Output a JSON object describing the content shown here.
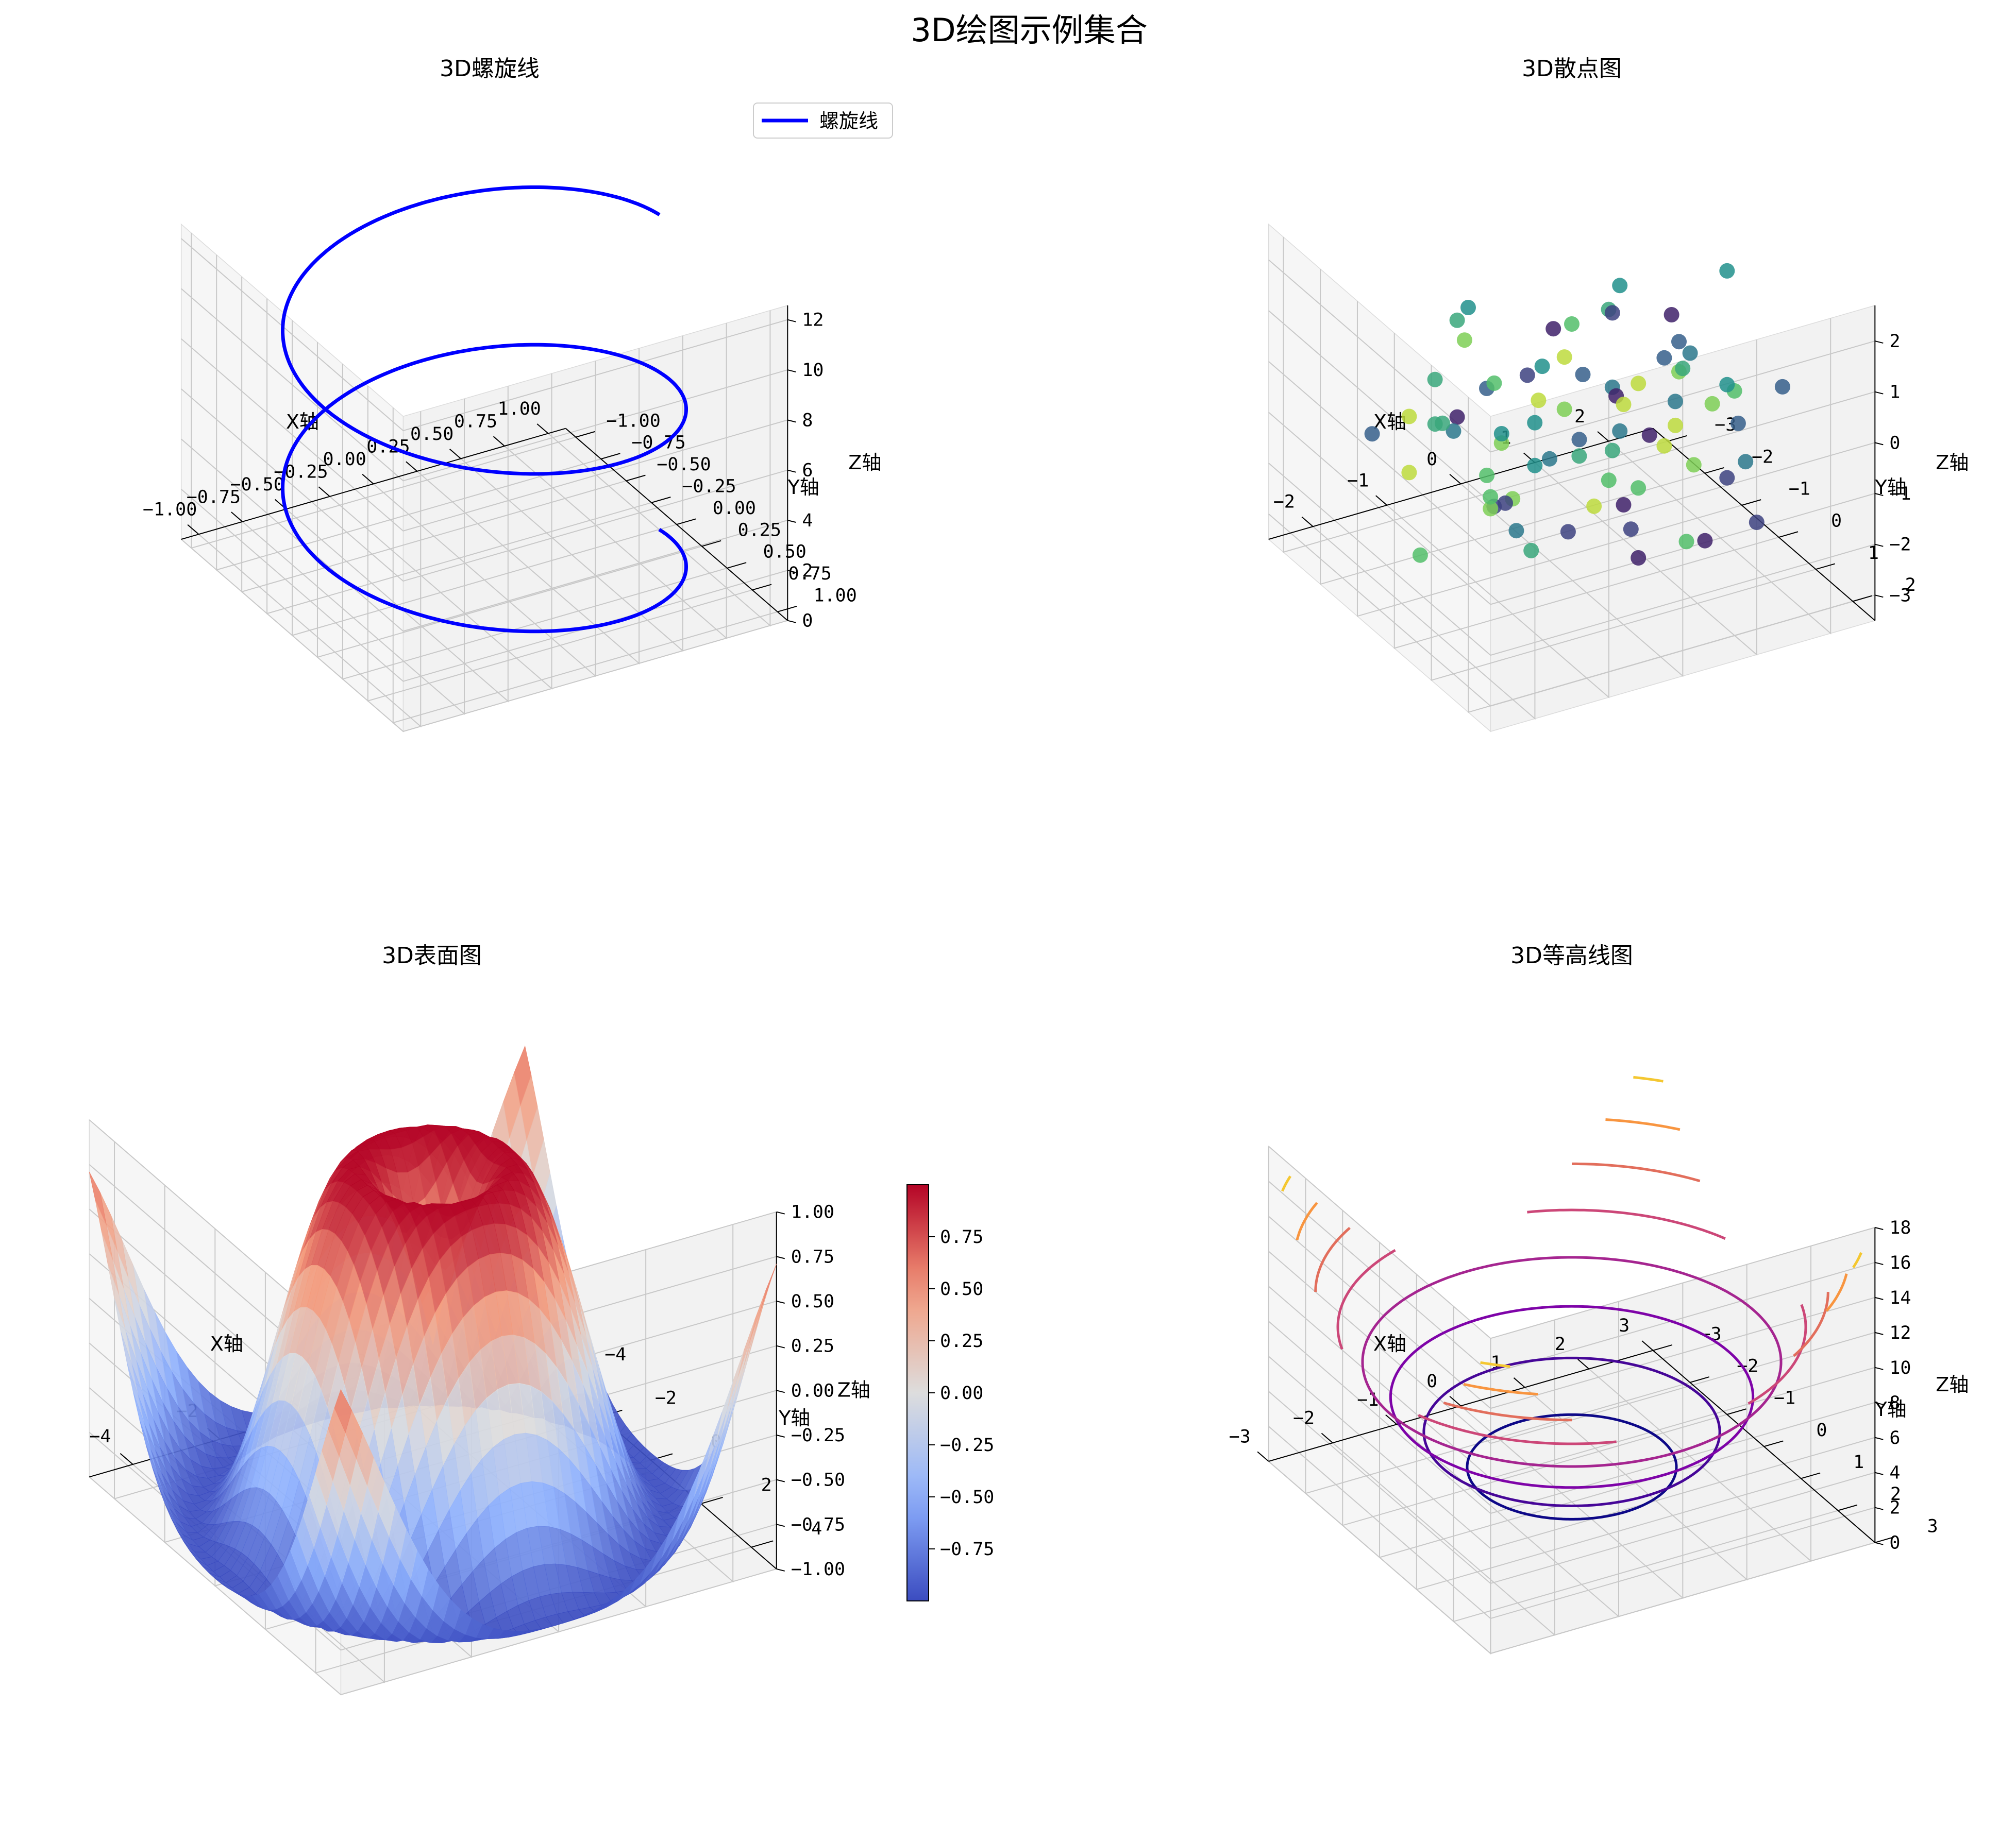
{
  "suptitle": "3D绘图示例集合",
  "chart_data": [
    {
      "type": "line",
      "title": "3D螺旋线",
      "xlabel": "X轴",
      "ylabel": "Y轴",
      "zlabel": "Z轴",
      "xlim": [
        -1.1,
        1.1
      ],
      "ylim": [
        -1.1,
        1.1
      ],
      "zlim": [
        0,
        12.57
      ],
      "xticks": [
        "−1.00",
        "−0.75",
        "−0.50",
        "−0.25",
        "0.00",
        "0.25",
        "0.50",
        "0.75",
        "1.00"
      ],
      "yticks": [
        "−1.00",
        "−0.75",
        "−0.50",
        "−0.25",
        "0.00",
        "0.25",
        "0.50",
        "0.75",
        "1.00"
      ],
      "zticks": [
        "0",
        "2",
        "4",
        "6",
        "8",
        "10",
        "12"
      ],
      "legend": {
        "label": "螺旋线",
        "position": "upper right"
      },
      "color": "#0000ff",
      "series": [
        {
          "name": "螺旋线",
          "x": "cos(t)",
          "y": "sin(t)",
          "z": "t",
          "t_range": [
            0,
            12.57
          ]
        }
      ]
    },
    {
      "type": "scatter",
      "title": "3D散点图",
      "xlabel": "X轴",
      "ylabel": "Y轴",
      "zlabel": "Z轴",
      "xlim": [
        -2.6,
        2.6
      ],
      "ylim": [
        -3.4,
        2.6
      ],
      "zlim": [
        -3.5,
        2.7
      ],
      "xticks": [
        "−2",
        "−1",
        "0",
        "1",
        "2"
      ],
      "yticks": [
        "−3",
        "−2",
        "−1",
        "0",
        "1",
        "2"
      ],
      "zticks": [
        "−3",
        "−2",
        "−1",
        "0",
        "1",
        "2"
      ],
      "colormap": "viridis",
      "points": [
        [
          -0.5,
          2.0,
          -0.3,
          0.1
        ],
        [
          0.3,
          1.8,
          0.8,
          0.9
        ],
        [
          -1.6,
          -0.4,
          0.1,
          0.4
        ],
        [
          1.3,
          2.0,
          -1.4,
          0.2
        ],
        [
          -0.2,
          -1.0,
          -0.7,
          0.5
        ],
        [
          0.8,
          0.5,
          1.1,
          0.3
        ],
        [
          -1.2,
          0.9,
          -1.6,
          0.6
        ],
        [
          1.9,
          0.2,
          -0.2,
          0.7
        ],
        [
          -0.6,
          -2.1,
          0.4,
          0.8
        ],
        [
          0.1,
          1.2,
          -2.1,
          0.1
        ],
        [
          -2.0,
          -0.8,
          -0.8,
          0.9
        ],
        [
          1.1,
          -1.5,
          0.6,
          0.2
        ],
        [
          -0.9,
          1.6,
          0.9,
          0.3
        ],
        [
          0.5,
          -0.3,
          -1.1,
          0.6
        ],
        [
          -1.4,
          0.3,
          1.4,
          0.7
        ],
        [
          1.6,
          1.1,
          -0.9,
          0.4
        ],
        [
          -0.3,
          -1.7,
          -1.5,
          0.8
        ],
        [
          0.9,
          -0.9,
          1.6,
          0.5
        ],
        [
          -1.8,
          1.4,
          -0.1,
          0.2
        ],
        [
          0.2,
          0.6,
          0.5,
          0.9
        ],
        [
          -0.7,
          -0.5,
          -2.3,
          0.4
        ],
        [
          1.4,
          -0.2,
          0.2,
          0.6
        ],
        [
          -1.1,
          -1.3,
          -0.4,
          0.1
        ],
        [
          0.6,
          1.5,
          -1.8,
          0.7
        ],
        [
          -0.1,
          0.1,
          0.9,
          0.3
        ],
        [
          1.8,
          -1.1,
          -0.6,
          0.8
        ],
        [
          -1.5,
          0.7,
          0.7,
          0.5
        ],
        [
          0.4,
          -2.4,
          -0.9,
          0.2
        ],
        [
          -0.4,
          1.0,
          -1.0,
          0.9
        ],
        [
          1.0,
          0.8,
          1.3,
          0.4
        ],
        [
          -2.2,
          -0.1,
          -1.9,
          0.7
        ],
        [
          0.7,
          -0.6,
          -0.3,
          0.1
        ],
        [
          -0.8,
          -1.9,
          1.0,
          0.6
        ],
        [
          1.2,
          1.7,
          0.4,
          0.3
        ],
        [
          -1.3,
          0.0,
          -1.3,
          0.8
        ],
        [
          0.0,
          -1.2,
          0.2,
          0.5
        ],
        [
          1.7,
          0.4,
          -1.7,
          0.2
        ],
        [
          -0.5,
          0.4,
          1.6,
          0.9
        ],
        [
          0.3,
          -1.6,
          -2.0,
          0.4
        ],
        [
          -1.9,
          1.1,
          0.3,
          0.7
        ],
        [
          1.5,
          -0.7,
          0.9,
          0.1
        ],
        [
          -0.2,
          0.2,
          -0.6,
          0.6
        ],
        [
          0.8,
          1.3,
          -0.5,
          0.8
        ],
        [
          -1.0,
          -0.7,
          0.5,
          0.3
        ],
        [
          2.1,
          -0.4,
          1.7,
          0.5
        ],
        [
          -1.7,
          -1.4,
          -0.2,
          0.9
        ],
        [
          0.6,
          0.0,
          -2.5,
          0.2
        ],
        [
          -0.6,
          1.8,
          0.1,
          0.7
        ],
        [
          1.3,
          -1.9,
          -1.2,
          0.4
        ],
        [
          -2.3,
          0.5,
          1.1,
          0.6
        ],
        [
          0.4,
          0.9,
          0.0,
          0.1
        ],
        [
          -0.9,
          -0.2,
          -1.4,
          0.8
        ],
        [
          1.9,
          1.5,
          0.7,
          0.3
        ],
        [
          -0.3,
          -2.6,
          0.6,
          0.5
        ],
        [
          0.9,
          0.3,
          -0.8,
          0.9
        ],
        [
          -1.2,
          1.9,
          -0.6,
          0.2
        ],
        [
          0.2,
          -0.8,
          1.2,
          0.7
        ],
        [
          1.1,
          -1.3,
          -1.6,
          0.4
        ],
        [
          -1.6,
          -0.9,
          0.8,
          0.6
        ],
        [
          0.5,
          2.2,
          -1.3,
          0.1
        ],
        [
          -0.1,
          -0.4,
          -0.1,
          0.8
        ],
        [
          1.6,
          0.6,
          0.3,
          0.5
        ],
        [
          -2.1,
          -1.6,
          -0.5,
          0.3
        ],
        [
          0.0,
          1.4,
          1.5,
          0.9
        ],
        [
          -0.7,
          -1.1,
          -2.2,
          0.2
        ],
        [
          1.4,
          -2.2,
          0.1,
          0.6
        ],
        [
          -1.4,
          0.2,
          -0.9,
          0.7
        ],
        [
          0.7,
          1.0,
          0.6,
          0.4
        ],
        [
          -0.4,
          -0.1,
          1.8,
          0.1
        ],
        [
          2.0,
          -0.6,
          -1.0,
          0.8
        ],
        [
          -1.0,
          0.6,
          -0.2,
          0.5
        ],
        [
          0.1,
          -1.5,
          -0.7,
          0.9
        ],
        [
          1.2,
          0.1,
          1.0,
          0.3
        ],
        [
          -1.8,
          -0.3,
          0.4,
          0.6
        ],
        [
          0.8,
          -0.2,
          -1.9,
          0.7
        ]
      ]
    },
    {
      "type": "surface",
      "title": "3D表面图",
      "xlabel": "X轴",
      "ylabel": "Y轴",
      "zlabel": "Z轴",
      "xlim": [
        -5,
        5
      ],
      "ylim": [
        -5,
        5
      ],
      "zlim": [
        -1,
        1
      ],
      "xticks": [
        "−4",
        "−2",
        "0",
        "2",
        "4"
      ],
      "yticks": [
        "−4",
        "−2",
        "0",
        "2",
        "4"
      ],
      "zticks": [
        "−1.00",
        "−0.75",
        "−0.50",
        "−0.25",
        "0.00",
        "0.25",
        "0.50",
        "0.75",
        "1.00"
      ],
      "function": "sin(sqrt(x^2+y^2))",
      "colormap": "coolwarm",
      "colorbar": {
        "ticks": [
          "−0.75",
          "−0.50",
          "−0.25",
          "0.00",
          "0.25",
          "0.50",
          "0.75"
        ],
        "range": [
          -1,
          1
        ]
      }
    },
    {
      "type": "contour3d",
      "title": "3D等高线图",
      "xlabel": "X轴",
      "ylabel": "Y轴",
      "zlabel": "Z轴",
      "xlim": [
        -3,
        3
      ],
      "ylim": [
        -3,
        3
      ],
      "zlim": [
        0,
        18
      ],
      "xticks": [
        "−3",
        "−2",
        "−1",
        "0",
        "1",
        "2",
        "3"
      ],
      "yticks": [
        "−3",
        "−2",
        "−1",
        "0",
        "1",
        "2",
        "3"
      ],
      "zticks": [
        "0",
        "2",
        "4",
        "6",
        "8",
        "10",
        "12",
        "14",
        "16",
        "18"
      ],
      "function": "x^2+y^2",
      "colormap": "plasma",
      "levels": [
        2,
        4,
        6,
        8,
        10,
        12,
        14,
        16,
        18
      ]
    }
  ]
}
